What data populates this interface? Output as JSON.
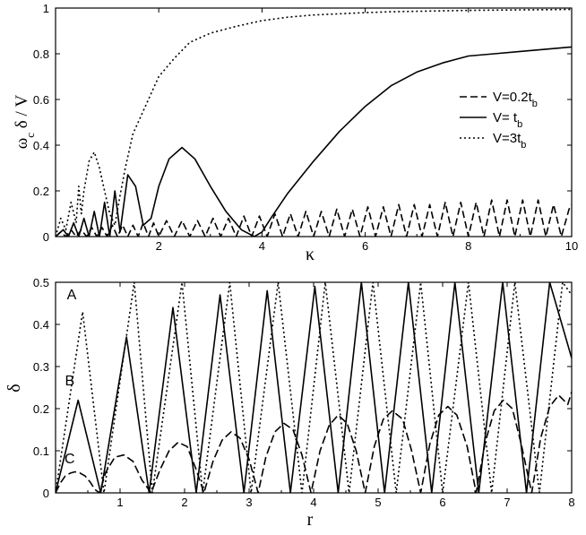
{
  "chart_data": [
    {
      "type": "line",
      "title": "",
      "xlabel": "κ",
      "ylabel": "ω_c δ / V",
      "xlim": [
        0,
        10
      ],
      "ylim": [
        0,
        1
      ],
      "x_ticks": [
        "2",
        "4",
        "6",
        "8",
        "10"
      ],
      "y_ticks": [
        "0",
        "0.2",
        "0.4",
        "0.6",
        "0.8",
        "1"
      ],
      "grid": false,
      "legend_position": "right",
      "legend": [
        {
          "label": "V=0.2t",
          "sub": "b",
          "dash": "8,4"
        },
        {
          "label": "V= t",
          "sub": "b",
          "dash": ""
        },
        {
          "label": "V=3t",
          "sub": "b",
          "dash": "2,3"
        }
      ],
      "series": [
        {
          "name": "V=0.2tb",
          "dash": "8,4",
          "x": [
            0.0,
            0.1,
            0.2,
            0.3,
            0.4,
            0.5,
            0.6,
            0.7,
            0.8,
            0.9,
            1.0,
            1.1,
            1.2,
            1.3,
            1.4,
            1.5,
            1.6,
            1.7,
            1.8,
            1.9,
            2.0,
            2.15,
            2.3,
            2.45,
            2.6,
            2.75,
            2.9,
            3.05,
            3.2,
            3.35,
            3.5,
            3.65,
            3.8,
            3.95,
            4.1,
            4.25,
            4.4,
            4.55,
            4.7,
            4.85,
            5.0,
            5.15,
            5.3,
            5.45,
            5.6,
            5.75,
            5.9,
            6.05,
            6.2,
            6.35,
            6.5,
            6.65,
            6.8,
            6.95,
            7.1,
            7.25,
            7.4,
            7.55,
            7.7,
            7.85,
            8.0,
            8.15,
            8.3,
            8.45,
            8.6,
            8.75,
            8.9,
            9.05,
            9.2,
            9.35,
            9.5,
            9.65,
            9.8,
            9.95,
            10.0
          ],
          "y": [
            0.0,
            0.02,
            0.0,
            0.03,
            0.0,
            0.03,
            0.0,
            0.04,
            0.0,
            0.04,
            0.0,
            0.05,
            0.0,
            0.05,
            0.0,
            0.05,
            0.0,
            0.06,
            0.0,
            0.06,
            0.0,
            0.07,
            0.0,
            0.07,
            0.0,
            0.07,
            0.0,
            0.08,
            0.0,
            0.08,
            0.0,
            0.09,
            0.0,
            0.09,
            0.0,
            0.1,
            0.0,
            0.1,
            0.0,
            0.11,
            0.0,
            0.11,
            0.0,
            0.12,
            0.0,
            0.12,
            0.0,
            0.13,
            0.0,
            0.13,
            0.0,
            0.14,
            0.0,
            0.14,
            0.0,
            0.14,
            0.0,
            0.15,
            0.0,
            0.15,
            0.0,
            0.15,
            0.0,
            0.16,
            0.0,
            0.16,
            0.0,
            0.16,
            0.0,
            0.16,
            0.0,
            0.14,
            0.0,
            0.12,
            0.14
          ]
        },
        {
          "name": "V= tb",
          "dash": "",
          "x": [
            0.0,
            0.15,
            0.25,
            0.35,
            0.45,
            0.55,
            0.65,
            0.75,
            0.85,
            0.95,
            1.05,
            1.15,
            1.25,
            1.4,
            1.55,
            1.7,
            1.85,
            2.0,
            2.2,
            2.45,
            2.7,
            3.0,
            3.3,
            3.6,
            3.85,
            4.0,
            4.2,
            4.5,
            5.0,
            5.5,
            6.0,
            6.5,
            7.0,
            7.5,
            8.0,
            8.5,
            9.0,
            9.5,
            10.0
          ],
          "y": [
            0.0,
            0.03,
            0.0,
            0.06,
            0.0,
            0.08,
            0.0,
            0.11,
            0.0,
            0.15,
            0.0,
            0.2,
            0.02,
            0.27,
            0.22,
            0.05,
            0.08,
            0.22,
            0.34,
            0.39,
            0.34,
            0.22,
            0.11,
            0.03,
            0.0,
            0.02,
            0.09,
            0.19,
            0.33,
            0.46,
            0.57,
            0.66,
            0.72,
            0.76,
            0.79,
            0.8,
            0.81,
            0.82,
            0.83
          ]
        },
        {
          "name": "V=3tb",
          "dash": "2,3",
          "x": [
            0.0,
            0.1,
            0.2,
            0.3,
            0.4,
            0.45,
            0.5,
            0.55,
            0.65,
            0.75,
            0.85,
            0.95,
            1.05,
            1.15,
            1.25,
            1.35,
            1.5,
            1.7,
            2.0,
            2.3,
            2.6,
            3.0,
            3.5,
            4.0,
            4.5,
            5.0,
            5.5,
            6.0,
            6.5,
            7.0,
            7.5,
            8.0,
            8.5,
            9.0,
            9.5,
            10.0
          ],
          "y": [
            0.0,
            0.08,
            0.03,
            0.15,
            0.06,
            0.22,
            0.1,
            0.2,
            0.33,
            0.37,
            0.3,
            0.2,
            0.1,
            0.05,
            0.18,
            0.3,
            0.45,
            0.55,
            0.7,
            0.78,
            0.85,
            0.89,
            0.92,
            0.945,
            0.96,
            0.97,
            0.975,
            0.98,
            0.984,
            0.986,
            0.988,
            0.99,
            0.991,
            0.992,
            0.993,
            0.994
          ]
        }
      ]
    },
    {
      "type": "line",
      "title": "",
      "xlabel": "r",
      "ylabel": "δ",
      "xlim": [
        0,
        8
      ],
      "ylim": [
        0,
        0.5
      ],
      "x_ticks": [
        "1",
        "2",
        "3",
        "4",
        "5",
        "6",
        "7",
        "8"
      ],
      "y_ticks": [
        "0",
        "0.1",
        "0.2",
        "0.3",
        "0.4",
        "0.5"
      ],
      "grid": false,
      "curve_labels": [
        {
          "text": "A",
          "x": 0.25,
          "y": 0.46
        },
        {
          "text": "B",
          "x": 0.22,
          "y": 0.255
        },
        {
          "text": "C",
          "x": 0.22,
          "y": 0.07
        }
      ],
      "series": [
        {
          "name": "A",
          "dash": "2,3",
          "x": [
            0.0,
            0.42,
            0.75,
            1.22,
            1.5,
            1.96,
            2.28,
            2.7,
            3.03,
            3.45,
            3.82,
            4.18,
            4.55,
            4.92,
            5.28,
            5.66,
            6.0,
            6.4,
            6.76,
            7.12,
            7.5,
            7.86,
            8.0
          ],
          "y": [
            0.0,
            0.43,
            0.0,
            0.5,
            0.0,
            0.5,
            0.0,
            0.5,
            0.0,
            0.5,
            0.0,
            0.5,
            0.0,
            0.5,
            0.0,
            0.5,
            0.0,
            0.5,
            0.0,
            0.5,
            0.0,
            0.5,
            0.47
          ]
        },
        {
          "name": "B",
          "dash": "",
          "x": [
            0.0,
            0.35,
            0.7,
            1.1,
            1.45,
            1.82,
            2.18,
            2.55,
            2.92,
            3.28,
            3.64,
            4.02,
            4.38,
            4.74,
            5.1,
            5.47,
            5.83,
            6.19,
            6.56,
            6.93,
            7.3,
            7.66,
            8.0
          ],
          "y": [
            0.0,
            0.22,
            0.0,
            0.37,
            0.0,
            0.44,
            0.0,
            0.47,
            0.0,
            0.48,
            0.0,
            0.49,
            0.0,
            0.5,
            0.0,
            0.5,
            0.0,
            0.5,
            0.0,
            0.5,
            0.0,
            0.5,
            0.32
          ]
        },
        {
          "name": "C",
          "dash": "9,4",
          "x": [
            0.0,
            0.08,
            0.15,
            0.23,
            0.3,
            0.38,
            0.46,
            0.54,
            0.61,
            0.68,
            0.78,
            0.92,
            1.06,
            1.2,
            1.34,
            1.48,
            1.62,
            1.76,
            1.9,
            2.04,
            2.18,
            2.3,
            2.44,
            2.58,
            2.72,
            2.86,
            3.0,
            3.14,
            3.26,
            3.4,
            3.54,
            3.68,
            3.82,
            3.96,
            4.1,
            4.24,
            4.38,
            4.52,
            4.66,
            4.8,
            4.94,
            5.08,
            5.22,
            5.38,
            5.52,
            5.66,
            5.8,
            5.94,
            6.08,
            6.22,
            6.38,
            6.52,
            6.66,
            6.8,
            6.94,
            7.08,
            7.22,
            7.38,
            7.52,
            7.66,
            7.8,
            7.94,
            8.0
          ],
          "y": [
            0.0,
            0.025,
            0.04,
            0.047,
            0.05,
            0.047,
            0.04,
            0.025,
            0.008,
            0.0,
            0.05,
            0.085,
            0.09,
            0.075,
            0.03,
            0.0,
            0.055,
            0.1,
            0.12,
            0.11,
            0.055,
            0.0,
            0.075,
            0.125,
            0.145,
            0.13,
            0.08,
            0.0,
            0.085,
            0.145,
            0.165,
            0.15,
            0.09,
            0.0,
            0.1,
            0.16,
            0.185,
            0.165,
            0.1,
            0.0,
            0.11,
            0.175,
            0.195,
            0.175,
            0.1,
            0.0,
            0.115,
            0.185,
            0.205,
            0.185,
            0.11,
            0.0,
            0.12,
            0.195,
            0.22,
            0.2,
            0.115,
            0.0,
            0.13,
            0.205,
            0.232,
            0.21,
            0.24
          ]
        }
      ]
    }
  ]
}
